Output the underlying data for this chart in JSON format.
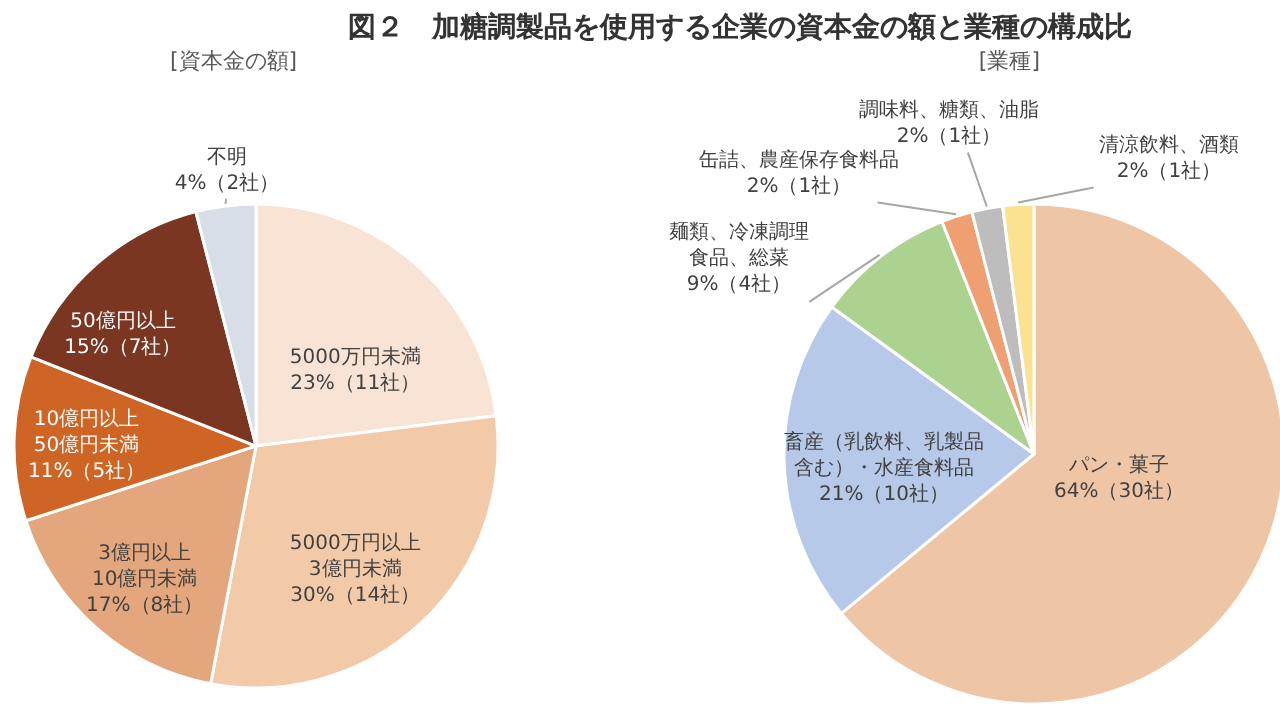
{
  "chart_data": [
    {
      "type": "pie",
      "title": "図２　加糖調製品を使用する企業の資本金の額と業種の構成比",
      "subtitle": "[資本金の額]",
      "categories": [
        "5000万円未満",
        "5000万円以上3億円未満",
        "3億円以上10億円未満",
        "10億円以上50億円未満",
        "50億円以上",
        "不明"
      ],
      "values": [
        23,
        30,
        17,
        11,
        15,
        4
      ],
      "value_labels": [
        "23%（11社）",
        "30%（14社）",
        "17%（8社）",
        "11%（5社）",
        "15%（7社）",
        "4%（2社）"
      ],
      "colors": [
        "#f9e3d5",
        "#f3caa8",
        "#e4a67c",
        "#cf6524",
        "#7a3620",
        "#d7dee8"
      ]
    },
    {
      "type": "pie",
      "subtitle": "[業種]",
      "categories": [
        "パン・菓子",
        "畜産（乳飲料、乳製品含む）・水産食料品",
        "麺類、冷凍調理食品、総菜",
        "缶詰、農産保存食料品",
        "調味料、糖類、油脂",
        "清涼飲料、酒類"
      ],
      "values": [
        64,
        21,
        9,
        2,
        2,
        2
      ],
      "value_labels": [
        "64%（30社）",
        "21%（10社）",
        "9%（4社）",
        "2%（1社）",
        "2%（1社）",
        "2%（1社）"
      ],
      "colors": [
        "#eec5a5",
        "#b7c9e8",
        "#abd28f",
        "#ef9f71",
        "#bdbdbd",
        "#fbe291"
      ]
    }
  ]
}
